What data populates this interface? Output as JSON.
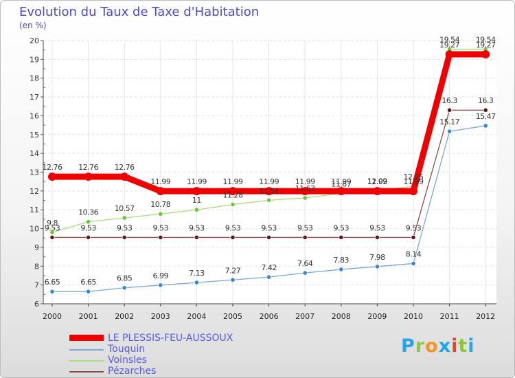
{
  "title": "Evolution du Taux de Taxe d'Habitation",
  "subtitle": "(en %)",
  "brand": {
    "letters": [
      "P",
      "r",
      "o",
      "x",
      "i",
      "t",
      "i"
    ],
    "colors": [
      "#2aa4e6",
      "#8cc83c",
      "#f7931e",
      "#1aa7ec",
      "#e6442c",
      "#8cc83c",
      "#2aa4e6"
    ]
  },
  "chart_data": {
    "type": "line",
    "title": "Evolution du Taux de Taxe d'Habitation",
    "ylabel": "(en %)",
    "xlabel": "",
    "ylim": [
      6,
      20
    ],
    "yticks": [
      "6",
      "7",
      "8",
      "9",
      "10",
      "11",
      "12",
      "13",
      "14",
      "15",
      "16",
      "17",
      "18",
      "19",
      "20"
    ],
    "categories": [
      "2000",
      "2001",
      "2002",
      "2003",
      "2004",
      "2005",
      "2006",
      "2007",
      "2008",
      "2009",
      "2010",
      "2011",
      "2012"
    ],
    "series": [
      {
        "name": "LE PLESSIS-FEU-AUSSOUX",
        "color": "#ee0000",
        "dot": "#ee0000",
        "width": 9,
        "values": [
          12.76,
          12.76,
          12.76,
          11.99,
          11.99,
          11.99,
          11.99,
          11.99,
          11.99,
          11.99,
          11.99,
          19.27,
          19.27
        ],
        "labels": [
          "12.76",
          "12.76",
          "12.76",
          "11.99",
          "11.99",
          "11.99",
          "11.99",
          "11.99",
          "11.99",
          "11.99",
          "11.99",
          "19.27",
          "19.27"
        ]
      },
      {
        "name": "Touquin",
        "color": "#7aa6d6",
        "dot": "#3a86c8",
        "width": 1.3,
        "values": [
          6.65,
          6.65,
          6.85,
          6.99,
          7.13,
          7.27,
          7.42,
          7.64,
          7.83,
          7.98,
          8.14,
          15.17,
          15.47
        ],
        "labels": [
          "6.65",
          "6.65",
          "6.85",
          "6.99",
          "7.13",
          "7.27",
          "7.42",
          "7.64",
          "7.83",
          "7.98",
          "8.14",
          "15.17",
          "15.47"
        ]
      },
      {
        "name": "Voinsles",
        "color": "#a8dc80",
        "dot": "#6cc43a",
        "width": 1.3,
        "values": [
          9.8,
          10.36,
          10.57,
          10.78,
          11,
          11.28,
          11.51,
          11.63,
          11.87,
          12.02,
          12.25,
          19.54,
          19.54
        ],
        "labels": [
          "9.8",
          "10.36",
          "10.57",
          "10.78",
          "11",
          "11.28",
          "11.51",
          "11.63",
          "11.87",
          "12.02",
          "12.25",
          "19.54",
          "19.54"
        ]
      },
      {
        "name": "Pézarches",
        "color": "#8a4a4a",
        "dot": "#5a1a1a",
        "width": 1.3,
        "values": [
          9.53,
          9.53,
          9.53,
          9.53,
          9.53,
          9.53,
          9.53,
          9.53,
          9.53,
          9.53,
          9.53,
          16.3,
          16.3
        ],
        "labels": [
          "9.53",
          "9.53",
          "9.53",
          "9.53",
          "9.53",
          "9.53",
          "9.53",
          "9.53",
          "9.53",
          "9.53",
          "9.53",
          "16.3",
          "16.3"
        ]
      }
    ]
  }
}
